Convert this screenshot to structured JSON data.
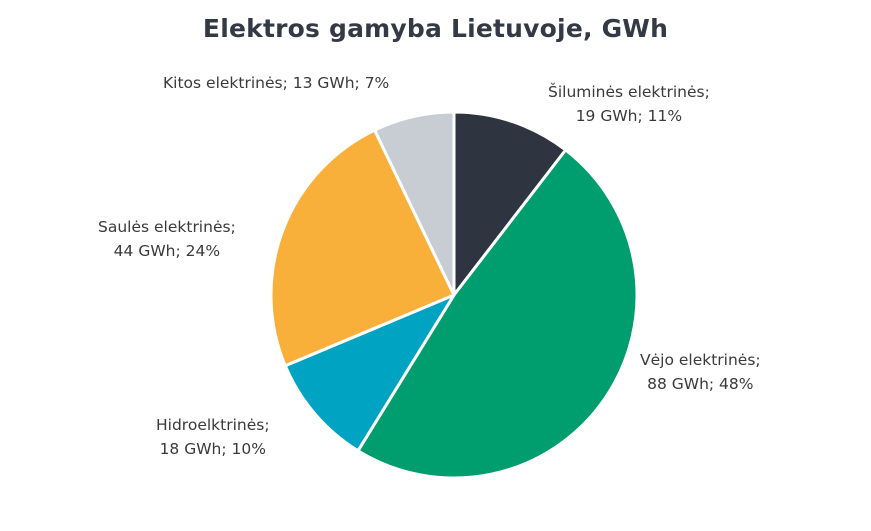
{
  "chart_data": {
    "type": "pie",
    "title": "Elektros gamyba Lietuvoje, GWh",
    "slices": [
      {
        "name": "Šiluminės elektrinės",
        "value": 19,
        "percent": 11,
        "color": "#2e3440",
        "label_line1": "Šiluminės elektrinės;",
        "label_line2": "19 GWh; 11%"
      },
      {
        "name": "Vėjo elektrinės",
        "value": 88,
        "percent": 48,
        "color": "#009e6e",
        "label_line1": "Vėjo elektrinės;",
        "label_line2": "88 GWh; 48%"
      },
      {
        "name": "Hidroelktrinės",
        "value": 18,
        "percent": 10,
        "color": "#00a3c1",
        "label_line1": "Hidroelktrinės;",
        "label_line2": "18 GWh; 10%"
      },
      {
        "name": "Saulės elektrinės",
        "value": 44,
        "percent": 24,
        "color": "#f9b03a",
        "label_line1": "Saulės elektrinės;",
        "label_line2": "44 GWh; 24%"
      },
      {
        "name": "Kitos elektrinės",
        "value": 13,
        "percent": 7,
        "color": "#c8ccd3",
        "label_line1": "Kitos elektrinės; 13 GWh; 7%",
        "label_line2": ""
      }
    ]
  }
}
